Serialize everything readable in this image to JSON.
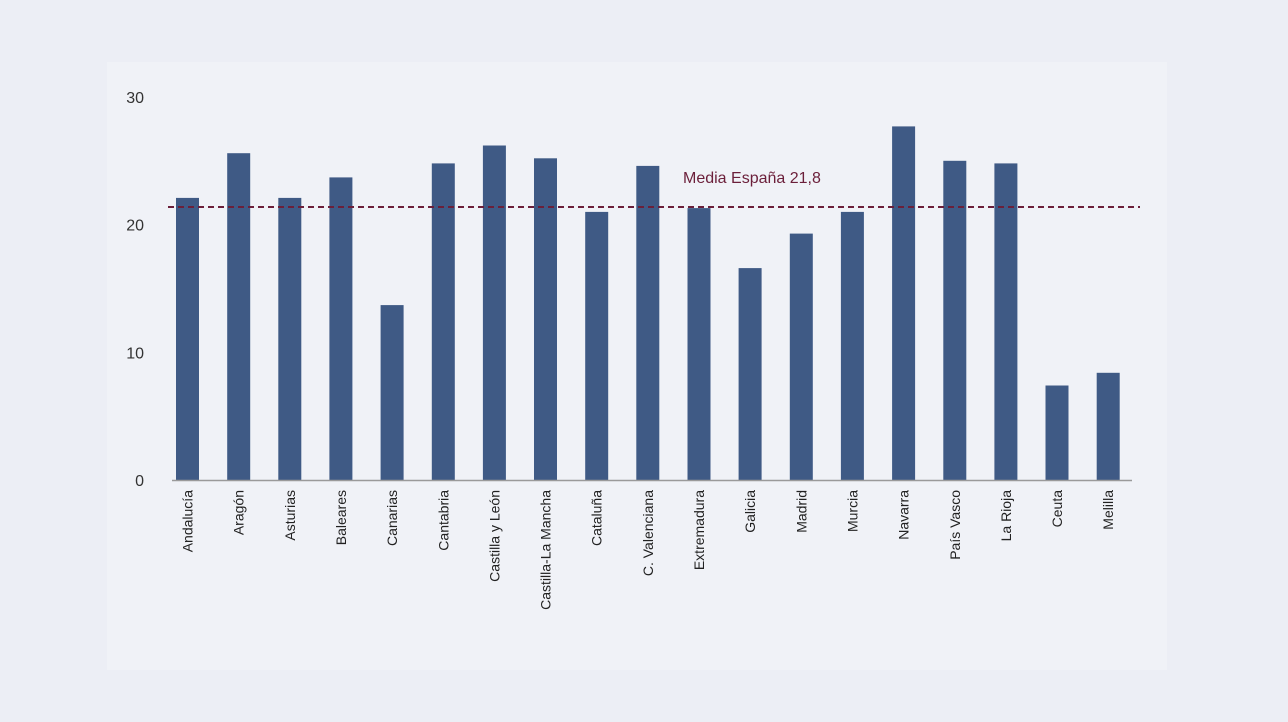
{
  "colors": {
    "bar": "#3f5a85",
    "reference_line": "#6b1f3a",
    "axis": "#9a9a9a"
  },
  "chart_data": {
    "type": "bar",
    "title": "",
    "xlabel": "",
    "ylabel": "",
    "ylim": [
      0,
      30
    ],
    "yticks": [
      "0",
      "10",
      "20",
      "30"
    ],
    "grid": false,
    "categories": [
      "Andalucía",
      "Aragón",
      "Asturias",
      "Baleares",
      "Canarias",
      "Cantabria",
      "Castilla y León",
      "Castilla-La Mancha",
      "Cataluña",
      "C. Valenciana",
      "Extremadura",
      "Galicia",
      "Madrid",
      "Murcia",
      "Navarra",
      "País Vasco",
      "La Rioja",
      "Ceuta",
      "Melilla"
    ],
    "values": [
      22.1,
      25.6,
      22.1,
      23.7,
      13.7,
      24.8,
      26.2,
      25.2,
      21.0,
      24.6,
      21.3,
      16.6,
      19.3,
      21.0,
      27.7,
      25.0,
      24.8,
      7.4,
      8.4
    ],
    "reference_line": {
      "label": "Media España 21,8",
      "value": 21.8
    }
  }
}
